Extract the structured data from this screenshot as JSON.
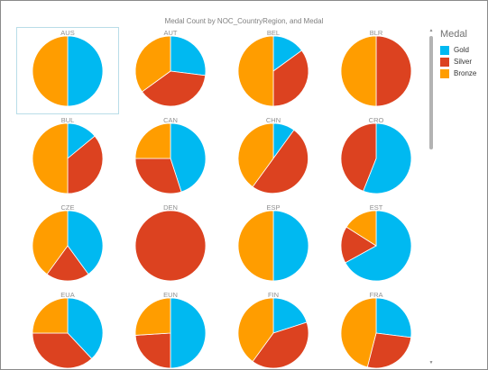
{
  "colors": {
    "gold": "#00B9F1",
    "silver": "#DC4220",
    "bronze": "#FF9D00"
  },
  "chart_data": {
    "type": "pie",
    "title": "Medal Count by NOC_CountryRegion, and Medal",
    "legend": {
      "title": "Medal",
      "placement": "right",
      "entries": [
        "Gold",
        "Silver",
        "Bronze"
      ]
    },
    "series_order": [
      "Gold",
      "Silver",
      "Bronze"
    ],
    "selected": "AUS",
    "pies": [
      {
        "label": "AUS",
        "values": [
          50,
          0,
          50
        ]
      },
      {
        "label": "AUT",
        "values": [
          27,
          38,
          35
        ]
      },
      {
        "label": "BEL",
        "values": [
          15,
          35,
          50
        ]
      },
      {
        "label": "BLR",
        "values": [
          0,
          50,
          50
        ]
      },
      {
        "label": "BUL",
        "values": [
          14,
          36,
          50
        ]
      },
      {
        "label": "CAN",
        "values": [
          45,
          30,
          25
        ]
      },
      {
        "label": "CHN",
        "values": [
          10,
          50,
          40
        ]
      },
      {
        "label": "CRO",
        "values": [
          56,
          44,
          0
        ]
      },
      {
        "label": "CZE",
        "values": [
          40,
          20,
          40
        ]
      },
      {
        "label": "DEN",
        "values": [
          0,
          100,
          0
        ]
      },
      {
        "label": "ESP",
        "values": [
          50,
          0,
          50
        ]
      },
      {
        "label": "EST",
        "values": [
          67,
          17,
          16
        ]
      },
      {
        "label": "EUA",
        "values": [
          38,
          37,
          25
        ]
      },
      {
        "label": "EUN",
        "values": [
          50,
          24,
          26
        ]
      },
      {
        "label": "FIN",
        "values": [
          20,
          40,
          40
        ]
      },
      {
        "label": "FRA",
        "values": [
          27,
          27,
          46
        ]
      }
    ]
  }
}
